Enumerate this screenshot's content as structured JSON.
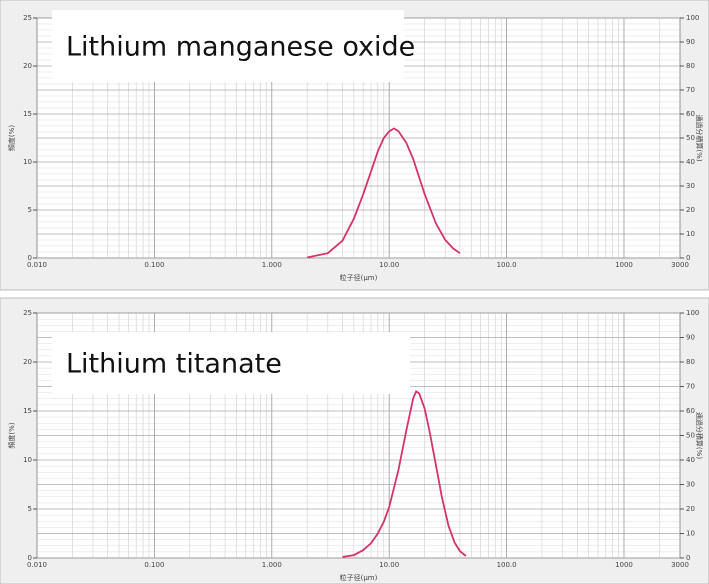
{
  "chart_data": [
    {
      "type": "line",
      "title": "Lithium manganese oxide",
      "xscale": "log",
      "x": [
        2,
        3,
        4,
        5,
        6,
        7,
        8,
        9,
        10,
        11,
        12,
        14,
        16,
        18,
        20,
        25,
        30,
        35,
        40
      ],
      "values": [
        0.05,
        0.5,
        1.8,
        4.1,
        6.6,
        9.0,
        11.1,
        12.5,
        13.2,
        13.5,
        13.2,
        12.0,
        10.3,
        8.4,
        6.7,
        3.6,
        1.9,
        1.0,
        0.5
      ],
      "color": "#d6336c",
      "xlim": [
        0.01,
        3000
      ],
      "xticks": [
        {
          "value": 0.01,
          "label": "0.010"
        },
        {
          "value": 0.1,
          "label": "0.100"
        },
        {
          "value": 1,
          "label": "1.000"
        },
        {
          "value": 10,
          "label": "10.00"
        },
        {
          "value": 100,
          "label": "100.0"
        },
        1000,
        3000
      ],
      "ylim": [
        0,
        25
      ],
      "yticks": [
        0,
        5,
        10,
        15,
        20,
        25
      ],
      "y2lim": [
        0,
        100
      ],
      "y2ticks": [
        0,
        10,
        20,
        30,
        40,
        50,
        60,
        70,
        80,
        90,
        100
      ],
      "xlabel": "粒子径(μm)",
      "ylabel": "頻度(%)",
      "y2label": "通過分積算(%)",
      "grid": true
    },
    {
      "type": "line",
      "title": "Lithium titanate",
      "xscale": "log",
      "x": [
        4,
        5,
        6,
        7,
        8,
        9,
        10,
        12,
        14,
        16,
        17,
        18,
        20,
        22,
        25,
        28,
        32,
        36,
        40,
        45
      ],
      "values": [
        0.1,
        0.3,
        0.8,
        1.5,
        2.5,
        3.7,
        5.2,
        9.0,
        13,
        16.3,
        17,
        16.8,
        15.3,
        13,
        9.5,
        6.3,
        3.3,
        1.6,
        0.7,
        0.2
      ],
      "color": "#d6336c",
      "xlim": [
        0.01,
        3000
      ],
      "xticks": [
        {
          "value": 0.01,
          "label": "0.010"
        },
        {
          "value": 0.1,
          "label": "0.100"
        },
        {
          "value": 1,
          "label": "1.000"
        },
        {
          "value": 10,
          "label": "10.00"
        },
        {
          "value": 100,
          "label": "100.0"
        },
        1000,
        3000
      ],
      "ylim": [
        0,
        25
      ],
      "yticks": [
        0,
        5,
        10,
        15,
        20,
        25
      ],
      "y2lim": [
        0,
        100
      ],
      "y2ticks": [
        0,
        10,
        20,
        30,
        40,
        50,
        60,
        70,
        80,
        90,
        100
      ],
      "xlabel": "粒子径(μm)",
      "ylabel": "頻度(%)",
      "y2label": "通過分積算(%)",
      "grid": true
    }
  ]
}
